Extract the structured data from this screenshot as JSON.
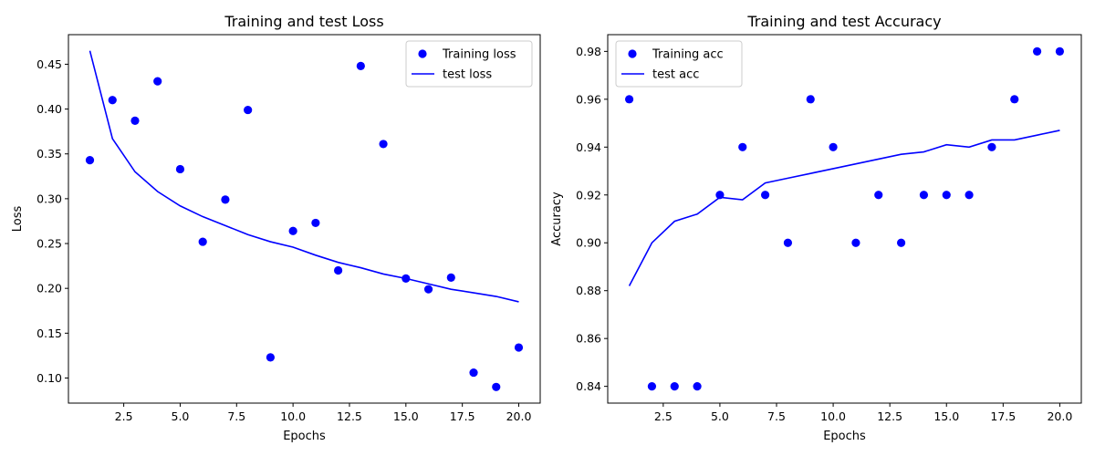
{
  "chart_data": [
    {
      "type": "scatter+line",
      "title": "Training and test Loss",
      "xlabel": "Epochs",
      "ylabel": "Loss",
      "xlim": [
        0.05,
        20.95
      ],
      "ylim": [
        0.072,
        0.483
      ],
      "xticks": [
        2.5,
        5.0,
        7.5,
        10.0,
        12.5,
        15.0,
        17.5,
        20.0
      ],
      "xtick_labels": [
        "2.5",
        "5.0",
        "7.5",
        "10.0",
        "12.5",
        "15.0",
        "17.5",
        "20.0"
      ],
      "yticks": [
        0.1,
        0.15,
        0.2,
        0.25,
        0.3,
        0.35,
        0.4,
        0.45
      ],
      "ytick_labels": [
        "0.10",
        "0.15",
        "0.20",
        "0.25",
        "0.30",
        "0.35",
        "0.40",
        "0.45"
      ],
      "legend_position": "top-right",
      "grid": false,
      "color": "#0000ff",
      "x": [
        1,
        2,
        3,
        4,
        5,
        6,
        7,
        8,
        9,
        10,
        11,
        12,
        13,
        14,
        15,
        16,
        17,
        18,
        19,
        20
      ],
      "series": [
        {
          "name": "Training loss",
          "style": "points",
          "values": [
            0.343,
            0.41,
            0.387,
            0.431,
            0.333,
            0.252,
            0.299,
            0.399,
            0.123,
            0.264,
            0.273,
            0.22,
            0.448,
            0.361,
            0.211,
            0.199,
            0.212,
            0.106,
            0.09,
            0.134
          ]
        },
        {
          "name": "test loss",
          "style": "line",
          "values": [
            0.465,
            0.367,
            0.33,
            0.308,
            0.292,
            0.28,
            0.27,
            0.26,
            0.252,
            0.246,
            0.237,
            0.229,
            0.223,
            0.216,
            0.211,
            0.205,
            0.199,
            0.195,
            0.191,
            0.185
          ]
        }
      ]
    },
    {
      "type": "scatter+line",
      "title": "Training and test Accuracy",
      "xlabel": "Epochs",
      "ylabel": "Accuracy",
      "xlim": [
        0.05,
        20.95
      ],
      "ylim": [
        0.833,
        0.987
      ],
      "xticks": [
        2.5,
        5.0,
        7.5,
        10.0,
        12.5,
        15.0,
        17.5,
        20.0
      ],
      "xtick_labels": [
        "2.5",
        "5.0",
        "7.5",
        "10.0",
        "12.5",
        "15.0",
        "17.5",
        "20.0"
      ],
      "yticks": [
        0.84,
        0.86,
        0.88,
        0.9,
        0.92,
        0.94,
        0.96,
        0.98
      ],
      "ytick_labels": [
        "0.84",
        "0.86",
        "0.88",
        "0.90",
        "0.92",
        "0.94",
        "0.96",
        "0.98"
      ],
      "legend_position": "top-left",
      "grid": false,
      "color": "#0000ff",
      "x": [
        1,
        2,
        3,
        4,
        5,
        6,
        7,
        8,
        9,
        10,
        11,
        12,
        13,
        14,
        15,
        16,
        17,
        18,
        19,
        20
      ],
      "series": [
        {
          "name": "Training acc",
          "style": "points",
          "values": [
            0.96,
            0.84,
            0.84,
            0.84,
            0.92,
            0.94,
            0.92,
            0.9,
            0.96,
            0.94,
            0.9,
            0.92,
            0.9,
            0.92,
            0.92,
            0.92,
            0.94,
            0.96,
            0.98,
            0.98
          ]
        },
        {
          "name": "test acc",
          "style": "line",
          "values": [
            0.882,
            0.9,
            0.909,
            0.912,
            0.919,
            0.918,
            0.925,
            0.927,
            0.929,
            0.931,
            0.933,
            0.935,
            0.937,
            0.938,
            0.941,
            0.94,
            0.943,
            0.943,
            0.945,
            0.947
          ]
        }
      ]
    }
  ]
}
